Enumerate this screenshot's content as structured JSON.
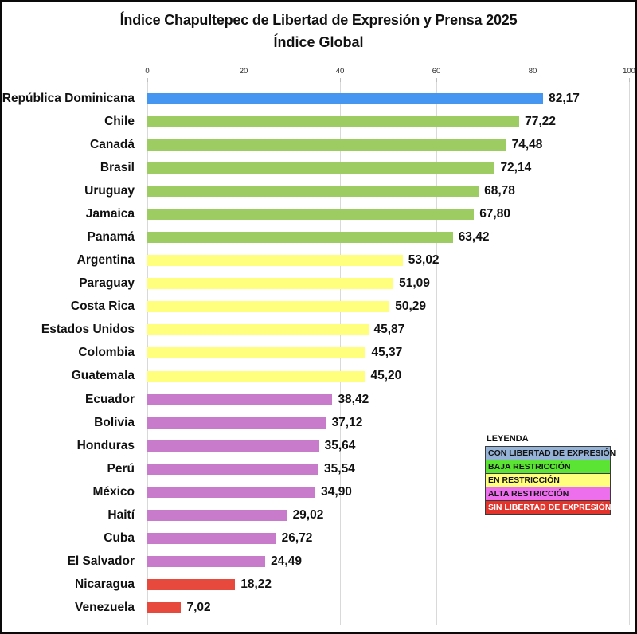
{
  "title": "Índice Chapultepec de Libertad de Expresión y Prensa 2025",
  "subtitle": "Índice Global",
  "legend": {
    "title": "LEYENDA",
    "items": [
      {
        "label": "CON LIBERTAD DE EXPRESIÓN",
        "color": "#95B3D7",
        "text_color": "#111111"
      },
      {
        "label": "BAJA RESTRICCIÓN",
        "color": "#5CE434",
        "text_color": "#111111"
      },
      {
        "label": "EN RESTRICCIÓN",
        "color": "#FFFF7D",
        "text_color": "#111111"
      },
      {
        "label": "ALTA RESTRICCIÓN",
        "color": "#EE6FEE",
        "text_color": "#111111"
      },
      {
        "label": "SIN LIBERTAD DE EXPRESIÓN",
        "color": "#E3332B",
        "text_color": "#FFFFFF"
      }
    ]
  },
  "chart_data": {
    "type": "bar",
    "orientation": "horizontal",
    "title": "Índice Chapultepec de Libertad de Expresión y Prensa 2025",
    "subtitle": "Índice Global",
    "xlim": [
      0,
      100
    ],
    "x_ticks": [
      "0",
      "20",
      "40",
      "60",
      "80",
      "100"
    ],
    "grid": true,
    "axis_position": "top",
    "legend_position": "right-middle",
    "category_colors": {
      "CON LIBERTAD DE EXPRESIÓN": "#4596F0",
      "BAJA RESTRICCIÓN": "#9DCC62",
      "EN RESTRICCIÓN": "#FFFF7D",
      "ALTA RESTRICCIÓN": "#C97BCB",
      "SIN LIBERTAD DE EXPRESIÓN": "#E74A3C"
    },
    "rows": [
      {
        "country": "República Dominicana",
        "value": 82.17,
        "label": "82,17",
        "category": "CON LIBERTAD DE EXPRESIÓN",
        "color": "#4596F0"
      },
      {
        "country": "Chile",
        "value": 77.22,
        "label": "77,22",
        "category": "BAJA RESTRICCIÓN",
        "color": "#9DCC62"
      },
      {
        "country": "Canadá",
        "value": 74.48,
        "label": "74,48",
        "category": "BAJA RESTRICCIÓN",
        "color": "#9DCC62"
      },
      {
        "country": "Brasil",
        "value": 72.14,
        "label": "72,14",
        "category": "BAJA RESTRICCIÓN",
        "color": "#9DCC62"
      },
      {
        "country": "Uruguay",
        "value": 68.78,
        "label": "68,78",
        "category": "BAJA RESTRICCIÓN",
        "color": "#9DCC62"
      },
      {
        "country": "Jamaica",
        "value": 67.8,
        "label": "67,80",
        "category": "BAJA RESTRICCIÓN",
        "color": "#9DCC62"
      },
      {
        "country": "Panamá",
        "value": 63.42,
        "label": "63,42",
        "category": "BAJA RESTRICCIÓN",
        "color": "#9DCC62"
      },
      {
        "country": "Argentina",
        "value": 53.02,
        "label": "53,02",
        "category": "EN RESTRICCIÓN",
        "color": "#FFFF7D"
      },
      {
        "country": "Paraguay",
        "value": 51.09,
        "label": "51,09",
        "category": "EN RESTRICCIÓN",
        "color": "#FFFF7D"
      },
      {
        "country": "Costa Rica",
        "value": 50.29,
        "label": "50,29",
        "category": "EN RESTRICCIÓN",
        "color": "#FFFF7D"
      },
      {
        "country": "Estados Unidos",
        "value": 45.87,
        "label": "45,87",
        "category": "EN RESTRICCIÓN",
        "color": "#FFFF7D"
      },
      {
        "country": "Colombia",
        "value": 45.37,
        "label": "45,37",
        "category": "EN RESTRICCIÓN",
        "color": "#FFFF7D"
      },
      {
        "country": "Guatemala",
        "value": 45.2,
        "label": "45,20",
        "category": "EN RESTRICCIÓN",
        "color": "#FFFF7D"
      },
      {
        "country": "Ecuador",
        "value": 38.42,
        "label": "38,42",
        "category": "ALTA RESTRICCIÓN",
        "color": "#C97BCB"
      },
      {
        "country": "Bolivia",
        "value": 37.12,
        "label": "37,12",
        "category": "ALTA RESTRICCIÓN",
        "color": "#C97BCB"
      },
      {
        "country": "Honduras",
        "value": 35.64,
        "label": "35,64",
        "category": "ALTA RESTRICCIÓN",
        "color": "#C97BCB"
      },
      {
        "country": "Perú",
        "value": 35.54,
        "label": "35,54",
        "category": "ALTA RESTRICCIÓN",
        "color": "#C97BCB"
      },
      {
        "country": "México",
        "value": 34.9,
        "label": "34,90",
        "category": "ALTA RESTRICCIÓN",
        "color": "#C97BCB"
      },
      {
        "country": "Haití",
        "value": 29.02,
        "label": "29,02",
        "category": "ALTA RESTRICCIÓN",
        "color": "#C97BCB"
      },
      {
        "country": "Cuba",
        "value": 26.72,
        "label": "26,72",
        "category": "ALTA RESTRICCIÓN",
        "color": "#C97BCB"
      },
      {
        "country": "El Salvador",
        "value": 24.49,
        "label": "24,49",
        "category": "ALTA RESTRICCIÓN",
        "color": "#C97BCB"
      },
      {
        "country": "Nicaragua",
        "value": 18.22,
        "label": "18,22",
        "category": "SIN LIBERTAD DE EXPRESIÓN",
        "color": "#E74A3C"
      },
      {
        "country": "Venezuela",
        "value": 7.02,
        "label": "7,02",
        "category": "SIN LIBERTAD DE EXPRESIÓN",
        "color": "#E74A3C"
      }
    ]
  }
}
